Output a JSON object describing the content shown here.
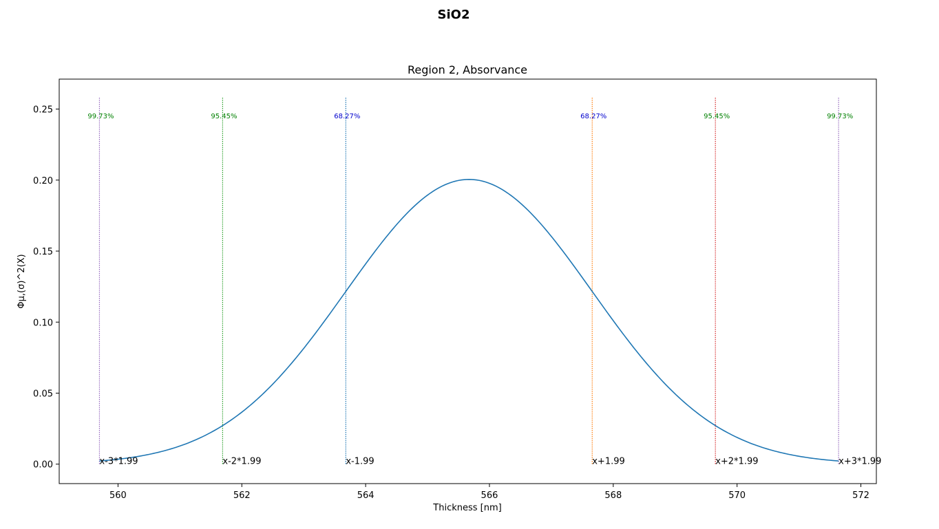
{
  "figure": {
    "suptitle": "SiO2"
  },
  "chart_data": {
    "type": "line",
    "title": "Region 2, Absorvance",
    "xlabel": "Thickness [nm]",
    "ylabel": "Φμ,(σ)^2(X)",
    "xlim": [
      559.05,
      572.25
    ],
    "ylim": [
      -0.0137,
      0.2711
    ],
    "xticks": [
      560,
      562,
      564,
      566,
      568,
      570,
      572
    ],
    "xtick_labels": [
      "560",
      "562",
      "564",
      "566",
      "568",
      "570",
      "572"
    ],
    "yticks": [
      0.0,
      0.05,
      0.1,
      0.15,
      0.2,
      0.25
    ],
    "ytick_labels": [
      "0.00",
      "0.05",
      "0.10",
      "0.15",
      "0.20",
      "0.25"
    ],
    "grid": false,
    "series": [
      {
        "kind": "gaussian",
        "mean": 565.67,
        "sigma": 1.99,
        "x_range": [
          559.7,
          571.64
        ],
        "color": "#1f77b4"
      }
    ],
    "vlines": [
      {
        "x": 559.7,
        "color": "#9467bd",
        "pct_label": "99.73%",
        "pct_color": "#008000",
        "bottom_label": "x-3*1.99"
      },
      {
        "x": 561.69,
        "color": "#2ca02c",
        "pct_label": "95.45%",
        "pct_color": "#008000",
        "bottom_label": "x-2*1.99"
      },
      {
        "x": 563.68,
        "color": "#1f77b4",
        "pct_label": "68.27%",
        "pct_color": "#0000cd",
        "bottom_label": "x-1.99"
      },
      {
        "x": 567.66,
        "color": "#ff7f0e",
        "pct_label": "68.27%",
        "pct_color": "#0000cd",
        "bottom_label": "x+1.99"
      },
      {
        "x": 569.65,
        "color": "#d62728",
        "pct_label": "95.45%",
        "pct_color": "#008000",
        "bottom_label": "x+2*1.99"
      },
      {
        "x": 571.64,
        "color": "#9467bd",
        "pct_label": "99.73%",
        "pct_color": "#008000",
        "bottom_label": "x+3*1.99"
      }
    ],
    "vline_top_y": 0.258,
    "pct_label_y": 0.2435,
    "bottom_label_y": 0.0
  }
}
